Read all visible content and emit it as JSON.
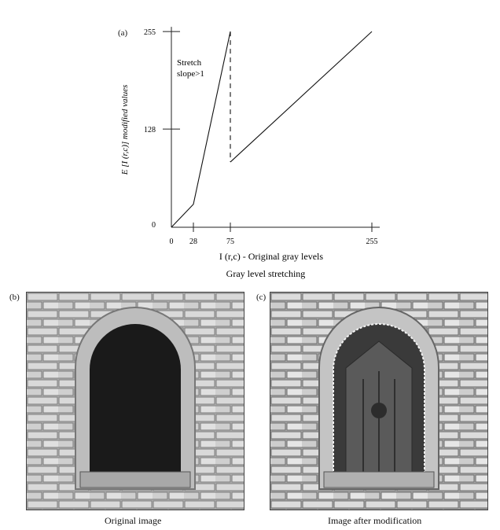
{
  "figure": {
    "panel_a_label": "(a)",
    "panel_b_label": "(b)",
    "panel_c_label": "(c)",
    "caption_b": "Original image",
    "caption_c": "Image after modification"
  },
  "chart_data": {
    "type": "line",
    "title": "",
    "subtitle": "Gray level stretching",
    "xlabel": "I (r,c) - Original gray levels",
    "ylabel": "E [I (r,c)] modified values",
    "xlim": [
      0,
      255
    ],
    "ylim": [
      0,
      255
    ],
    "x_ticks": [
      0,
      28,
      75,
      255
    ],
    "y_ticks": [
      0,
      128,
      255
    ],
    "grid": false,
    "annotation": {
      "lines": [
        "Stretch",
        "slope>1"
      ],
      "x": 5,
      "y": 210
    },
    "series": [
      {
        "points": [
          [
            0,
            0
          ],
          [
            28,
            30
          ],
          [
            75,
            255
          ]
        ],
        "style": "solid"
      },
      {
        "points": [
          [
            75,
            255
          ],
          [
            75,
            85
          ]
        ],
        "style": "dashed"
      },
      {
        "points": [
          [
            75,
            85
          ],
          [
            255,
            255
          ]
        ],
        "style": "solid"
      }
    ]
  }
}
